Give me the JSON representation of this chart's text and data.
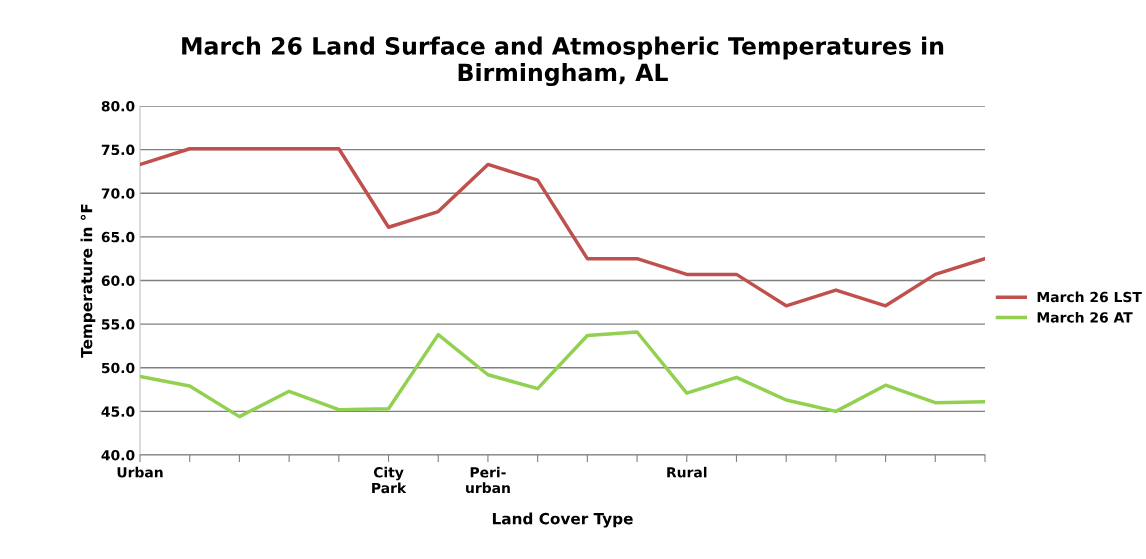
{
  "chart_data": {
    "type": "line",
    "title": "March 26 Land Surface and Atmospheric Temperatures in\nBirmingham, AL",
    "xlabel": "Land Cover Type",
    "ylabel": "Temperature in °F",
    "categories": [
      "Urban",
      null,
      null,
      null,
      null,
      "City\nPark",
      null,
      "Peri-\nurban",
      null,
      null,
      null,
      "Rural",
      null,
      null,
      null,
      null,
      null,
      null
    ],
    "series": [
      {
        "name": "March 26 LST",
        "color": "#c0504d",
        "values": [
          73.3,
          75.1,
          75.1,
          75.1,
          75.1,
          66.1,
          67.9,
          73.3,
          71.5,
          62.5,
          62.5,
          60.7,
          60.7,
          57.1,
          58.9,
          57.1,
          60.7,
          62.5
        ]
      },
      {
        "name": "March 26 AT",
        "color": "#92d050",
        "values": [
          49.0,
          47.9,
          44.4,
          47.3,
          45.2,
          45.3,
          53.8,
          49.2,
          47.6,
          53.7,
          54.1,
          47.1,
          48.9,
          46.3,
          45.0,
          48.0,
          46.0,
          46.1
        ]
      }
    ],
    "ylim": [
      40,
      80
    ],
    "yticks": [
      {
        "value": 40,
        "label": "40.0"
      },
      {
        "value": 45,
        "label": "45.0"
      },
      {
        "value": 50,
        "label": "50.0"
      },
      {
        "value": 55,
        "label": "55.0"
      },
      {
        "value": 60,
        "label": "60.0"
      },
      {
        "value": 65,
        "label": "65.0"
      },
      {
        "value": 70,
        "label": "70.0"
      },
      {
        "value": 75,
        "label": "75.0"
      },
      {
        "value": 80,
        "label": "80.0"
      }
    ],
    "grid": "y",
    "legend": "right",
    "marker": "none",
    "line_style": "solid"
  }
}
